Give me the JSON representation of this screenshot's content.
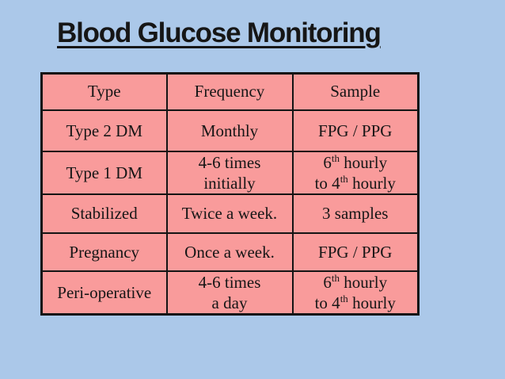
{
  "title": "Blood Glucose Monitoring",
  "colors": {
    "background": "#abc8e9",
    "cell_fill": "#f99b9b",
    "border": "#141414",
    "text": "#161616"
  },
  "table": {
    "headers": [
      "Type",
      "Frequency",
      "Sample"
    ],
    "rows": [
      [
        [
          "Type 2 DM"
        ],
        [
          "Monthly"
        ],
        [
          "FPG / PPG"
        ]
      ],
      [
        [
          "Type 1 DM"
        ],
        [
          "4-6 times",
          "initially"
        ],
        [
          "6{th} hourly",
          "to 4{th} hourly"
        ]
      ],
      [
        [
          "Stabilized"
        ],
        [
          "Twice a week."
        ],
        [
          "3 samples"
        ]
      ],
      [
        [
          "Pregnancy"
        ],
        [
          "Once a week."
        ],
        [
          "FPG / PPG"
        ]
      ],
      [
        [
          "Peri-operative"
        ],
        [
          "4-6 times",
          "a day"
        ],
        [
          "6{th} hourly",
          "to 4{th} hourly"
        ]
      ]
    ]
  }
}
